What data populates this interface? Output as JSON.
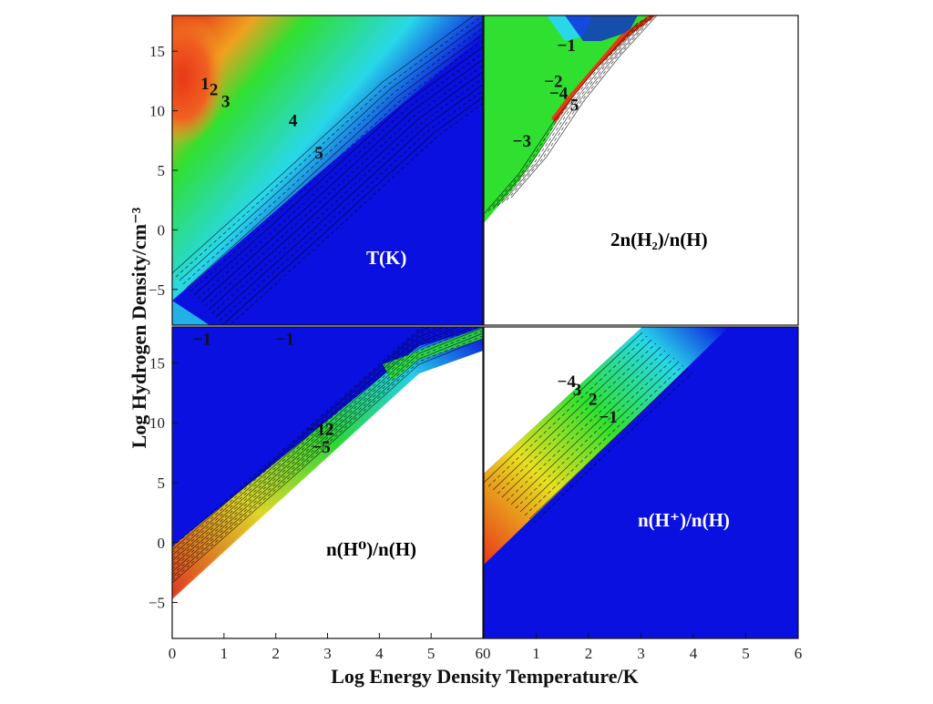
{
  "chart_data": {
    "type": "heatmap",
    "xlabel": "Log Energy Density Temperature/K",
    "ylabel": "Log Hydrogen Density/cm⁻³",
    "xlim": [
      0,
      6
    ],
    "ylim": [
      -8,
      18
    ],
    "x_ticks": [
      "0",
      "1",
      "2",
      "3",
      "4",
      "5",
      "6"
    ],
    "y_ticks": [
      "−5",
      "0",
      "5",
      "10",
      "15"
    ],
    "grid": false,
    "panels": [
      {
        "id": "temperature",
        "position": "top-left",
        "title": "T(K)",
        "title_color": "#ffffff",
        "contour_labels": [
          {
            "text": "1",
            "x": 0.55,
            "y": 11.8
          },
          {
            "text": "2",
            "x": 0.72,
            "y": 11.3
          },
          {
            "text": "3",
            "x": 0.95,
            "y": 10.3
          },
          {
            "text": "4",
            "x": 2.25,
            "y": 8.7
          },
          {
            "text": "5",
            "x": 2.75,
            "y": 6.0
          }
        ]
      },
      {
        "id": "h2-fraction",
        "position": "top-right",
        "title": "2n(H₂)/n(H)",
        "title_color": "#000000",
        "contour_labels": [
          {
            "text": "−1",
            "x": 1.4,
            "y": 15.0
          },
          {
            "text": "−2",
            "x": 1.15,
            "y": 12.0
          },
          {
            "text": "−4",
            "x": 1.25,
            "y": 11.0
          },
          {
            "text": "5",
            "x": 1.65,
            "y": 10.0
          },
          {
            "text": "−3",
            "x": 0.55,
            "y": 7.0
          }
        ]
      },
      {
        "id": "h0-fraction",
        "position": "bottom-left",
        "title": "n(H⁰)/n(H)",
        "title_color": "#000000",
        "contour_labels": [
          {
            "text": "−1",
            "x": 0.4,
            "y": 16.5
          },
          {
            "text": "−1",
            "x": 2.0,
            "y": 16.5
          },
          {
            "text": "−12",
            "x": 2.6,
            "y": 9.0
          },
          {
            "text": "2",
            "x": 2.95,
            "y": 9.0
          },
          {
            "text": "−5",
            "x": 2.7,
            "y": 7.5
          }
        ]
      },
      {
        "id": "hplus-fraction",
        "position": "bottom-right",
        "title": "n(H⁺)/n(H)",
        "title_color": "#ffffff",
        "contour_labels": [
          {
            "text": "−4",
            "x": 1.4,
            "y": 13.0
          },
          {
            "text": "3",
            "x": 1.7,
            "y": 12.3
          },
          {
            "text": "2",
            "x": 2.0,
            "y": 11.5
          },
          {
            "text": "−1",
            "x": 2.2,
            "y": 10.0
          }
        ]
      }
    ]
  },
  "colors": {
    "blue": "#0a10e0",
    "cyan": "#28d8e8",
    "green": "#30e030",
    "yellow": "#e8e020",
    "orange": "#f08020",
    "red": "#e83818"
  }
}
